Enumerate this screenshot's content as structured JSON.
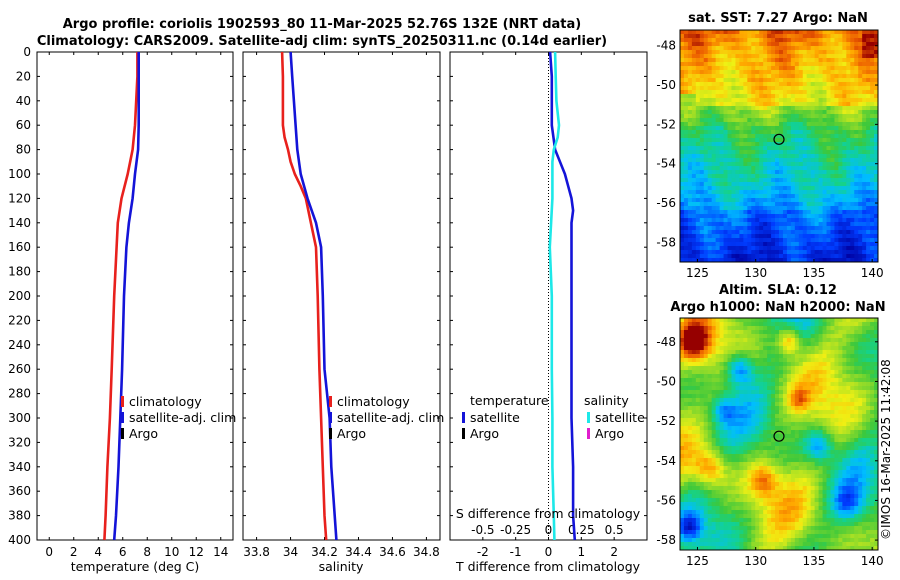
{
  "header": {
    "line1": "Argo profile: coriolis 1902593_80 11-Mar-2025 52.76S 132E (NRT data)",
    "line2": "Climatology: CARS2009. Satellite-adj clim: synTS_20250311.nc (0.14d earlier)"
  },
  "colors": {
    "climatology": "#e8211d",
    "satellite": "#1414d8",
    "argo": "#000000",
    "sal_satellite": "#1de8e8",
    "sal_argo": "#e01ecd"
  },
  "chart_data": [
    {
      "type": "line",
      "id": "temperature",
      "xlabel": "temperature (deg C)",
      "ylabel": "",
      "xlim": [
        -1,
        15
      ],
      "ylim": [
        400,
        0
      ],
      "xticks": [
        0,
        2,
        4,
        6,
        8,
        10,
        12,
        14
      ],
      "yticks": [
        0,
        20,
        40,
        60,
        80,
        100,
        120,
        140,
        160,
        180,
        200,
        220,
        240,
        260,
        280,
        300,
        320,
        340,
        360,
        380,
        400
      ],
      "legend": [
        "climatology",
        "satellite-adj. clim",
        "Argo"
      ],
      "series": [
        {
          "name": "climatology",
          "depth": [
            0,
            20,
            40,
            60,
            80,
            100,
            120,
            140,
            160,
            200,
            260,
            300,
            340,
            380,
            400
          ],
          "values": [
            7.2,
            7.2,
            7.1,
            7.0,
            6.8,
            6.4,
            5.9,
            5.6,
            5.5,
            5.3,
            5.1,
            4.95,
            4.75,
            4.6,
            4.5
          ]
        },
        {
          "name": "satellite-adj. clim",
          "depth": [
            0,
            20,
            60,
            80,
            100,
            120,
            140,
            160,
            200,
            260,
            300,
            340,
            380,
            400
          ],
          "values": [
            7.3,
            7.3,
            7.3,
            7.25,
            7.0,
            6.8,
            6.5,
            6.3,
            6.1,
            5.95,
            5.8,
            5.65,
            5.45,
            5.3
          ]
        }
      ]
    },
    {
      "type": "line",
      "id": "salinity",
      "xlabel": "salinity",
      "xlim": [
        33.72,
        34.88
      ],
      "ylim": [
        400,
        0
      ],
      "xticks": [
        33.8,
        34,
        34.2,
        34.4,
        34.6,
        34.8
      ],
      "xticklabels": [
        "33.8",
        "34",
        "34.2",
        "34.4",
        "34.6",
        "34.8"
      ],
      "legend": [
        "climatology",
        "satellite-adj. clim",
        "Argo"
      ],
      "series": [
        {
          "name": "climatology",
          "depth": [
            0,
            20,
            40,
            60,
            70,
            80,
            90,
            100,
            110,
            120,
            140,
            160,
            200,
            260,
            300,
            340,
            380,
            400
          ],
          "values": [
            33.95,
            33.955,
            33.955,
            33.955,
            33.965,
            33.985,
            34.0,
            34.025,
            34.06,
            34.09,
            34.12,
            34.15,
            34.16,
            34.17,
            34.18,
            34.19,
            34.2,
            34.21
          ]
        },
        {
          "name": "satellite-adj. clim",
          "depth": [
            0,
            20,
            40,
            60,
            80,
            100,
            120,
            140,
            160,
            200,
            260,
            300,
            340,
            380,
            400
          ],
          "values": [
            34.0,
            34.01,
            34.02,
            34.03,
            34.04,
            34.06,
            34.1,
            34.15,
            34.18,
            34.19,
            34.2,
            34.23,
            34.24,
            34.26,
            34.27
          ]
        }
      ]
    },
    {
      "type": "line",
      "id": "difference",
      "xlabel": "T difference from climatology",
      "xlabel_top": "S difference from climatology",
      "xlim": [
        -3,
        3
      ],
      "ylim": [
        400,
        0
      ],
      "xticks": [
        -2,
        -1,
        0,
        1,
        2
      ],
      "xticklabels": [
        "-2",
        "-1",
        "0",
        "1",
        "2"
      ],
      "sticks": [
        -0.5,
        -0.25,
        0,
        0.25,
        0.5
      ],
      "sticklabels": [
        "-0.5",
        "-0.25",
        "0",
        "0.25",
        "0.5"
      ],
      "slim": [
        -0.75,
        0.75
      ],
      "legend_temperature": [
        "temperature",
        "satellite",
        "Argo"
      ],
      "legend_salinity": [
        "salinity",
        "satellite",
        "Argo"
      ],
      "series": [
        {
          "name": "temperature satellite",
          "depth": [
            0,
            20,
            60,
            80,
            90,
            100,
            110,
            120,
            130,
            140,
            160,
            200,
            260,
            300,
            340,
            380,
            400
          ],
          "values": [
            0.05,
            0.1,
            0.1,
            0.2,
            0.35,
            0.5,
            0.6,
            0.7,
            0.75,
            0.7,
            0.7,
            0.7,
            0.7,
            0.7,
            0.75,
            0.75,
            0.8
          ]
        },
        {
          "name": "salinity satellite",
          "depth": [
            0,
            20,
            40,
            50,
            60,
            70,
            80,
            90,
            100,
            120,
            140,
            160,
            200,
            260,
            300,
            340,
            380,
            400
          ],
          "values": [
            0.05,
            0.055,
            0.06,
            0.07,
            0.08,
            0.07,
            0.04,
            0.03,
            0.03,
            0.03,
            0.02,
            0.01,
            0.025,
            0.025,
            0.03,
            0.03,
            0.04,
            0.045
          ]
        }
      ]
    },
    {
      "type": "heatmap",
      "id": "sst_map",
      "title": "sat. SST: 7.27 Argo: NaN",
      "xticks": [
        125,
        130,
        135,
        140
      ],
      "yticks": [
        -48,
        -50,
        -52,
        -54,
        -56,
        -58
      ],
      "xlim": [
        123.5,
        140.5
      ],
      "ylim": [
        -59,
        -47.2
      ],
      "marker": [
        132,
        -52.76
      ]
    },
    {
      "type": "heatmap",
      "id": "sla_map",
      "title_line1": "Altim. SLA: 0.12",
      "title_line2": "Argo h1000: NaN h2000: NaN",
      "xticks": [
        125,
        130,
        135,
        140
      ],
      "yticks": [
        -48,
        -50,
        -52,
        -54,
        -56,
        -58
      ],
      "xlim": [
        123.5,
        140.5
      ],
      "ylim": [
        -58.5,
        -46.8
      ],
      "marker": [
        132,
        -52.76
      ]
    }
  ],
  "footer": {
    "copyright": "©IMOS 16-Mar-2025 11:42:08"
  }
}
